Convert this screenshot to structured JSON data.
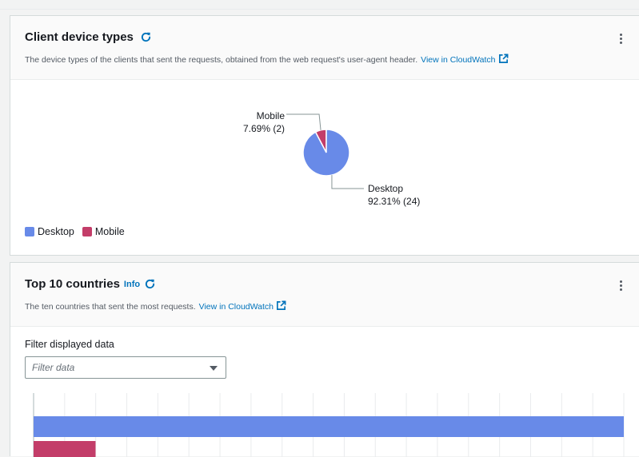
{
  "device_card": {
    "title": "Client device types",
    "description": "The device types of the clients that sent the requests, obtained from the web request's user-agent header.",
    "link": "View in CloudWatch",
    "icons": {
      "refresh": "refresh-icon",
      "external": "external-link-icon",
      "menu": "more-vertical-icon"
    }
  },
  "countries_card": {
    "title": "Top 10 countries",
    "info": "Info",
    "description": "The ten countries that sent the most requests.",
    "link": "View in CloudWatch",
    "filter_label": "Filter displayed data",
    "filter_placeholder": "Filter data"
  },
  "colors": {
    "desktop": "#688ae8",
    "mobile": "#c33d69",
    "link": "#0073bb"
  },
  "chart_data": [
    {
      "type": "pie",
      "slices": [
        {
          "name": "Desktop",
          "value": 24,
          "label": "Desktop",
          "detail": "92.31% (24)",
          "color": "#688ae8"
        },
        {
          "name": "Mobile",
          "value": 2,
          "label": "Mobile",
          "detail": "7.69% (2)",
          "color": "#c33d69"
        }
      ],
      "legend": [
        "Desktop",
        "Mobile"
      ],
      "legend_position": "bottom-left"
    },
    {
      "type": "bar",
      "orientation": "horizontal",
      "grid": true,
      "visible_bars": [
        {
          "value": 1.0,
          "color": "#688ae8"
        },
        {
          "value": 0.105,
          "color": "#c33d69"
        }
      ]
    }
  ]
}
